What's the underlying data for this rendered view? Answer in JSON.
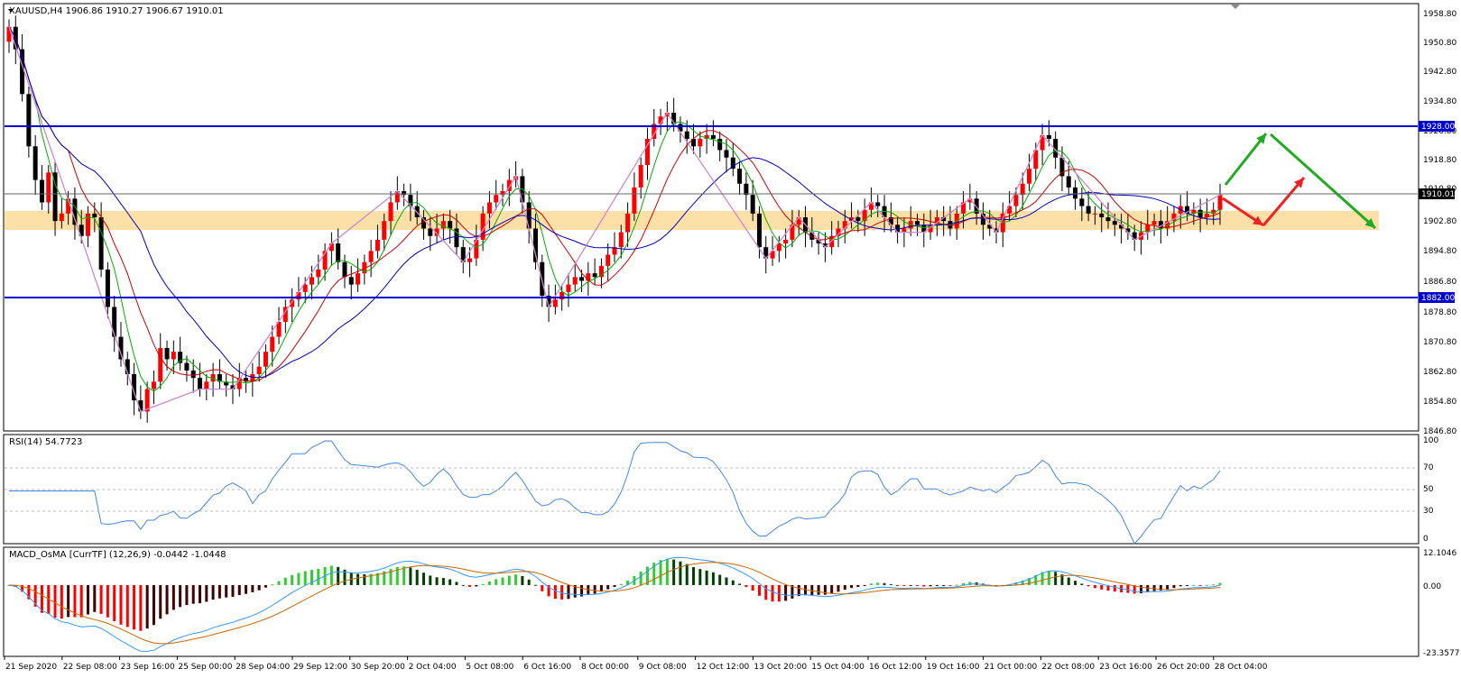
{
  "main_panel": {
    "title": "XAUUSD,H4  1906.86 1910.27 1906.67 1910.01",
    "price_levels": [
      "1958.80",
      "1950.80",
      "1942.80",
      "1934.80",
      "1926.80",
      "1918.80",
      "1910.80",
      "1902.80",
      "1894.80",
      "1886.80",
      "1878.80",
      "1870.80",
      "1862.80",
      "1854.80",
      "1846.80"
    ],
    "markers": {
      "resistance": "1928.00",
      "current": "1910.01",
      "support": "1882.00"
    }
  },
  "rsi_panel": {
    "title": "RSI(14) 54.7723",
    "levels": [
      "100",
      "70",
      "50",
      "30",
      "0"
    ]
  },
  "macd_panel": {
    "title": "MACD_OsMA [CurrTF] (12,26,9) -0.0442 -1.0448",
    "levels": [
      "12.1046",
      "0.00",
      "-23.3577"
    ]
  },
  "time_axis": [
    "21 Sep 2020",
    "22 Sep 08:00",
    "23 Sep 16:00",
    "25 Sep 00:00",
    "28 Sep 04:00",
    "29 Sep 12:00",
    "30 Sep 20:00",
    "2 Oct 04:00",
    "5 Oct 08:00",
    "6 Oct 16:00",
    "8 Oct 00:00",
    "9 Oct 08:00",
    "12 Oct 12:00",
    "13 Oct 20:00",
    "15 Oct 04:00",
    "16 Oct 12:00",
    "19 Oct 16:00",
    "21 Oct 00:00",
    "22 Oct 08:00",
    "23 Oct 16:00",
    "26 Oct 20:00",
    "28 Oct 04:00"
  ],
  "chart_data": {
    "type": "candlestick",
    "symbol": "XAUUSD",
    "timeframe": "H4",
    "ohlc_last": {
      "open": 1906.86,
      "high": 1910.27,
      "low": 1906.67,
      "close": 1910.01
    },
    "ylim": [
      1846.8,
      1958.8
    ],
    "closes": [
      1955,
      1949,
      1937,
      1923,
      1914,
      1908,
      1916,
      1903,
      1905,
      1909,
      1902,
      1899,
      1905,
      1904,
      1890,
      1880,
      1872,
      1866,
      1862,
      1855,
      1852,
      1858,
      1860,
      1869,
      1866,
      1868,
      1865,
      1863,
      1861,
      1858,
      1860,
      1862,
      1860,
      1859,
      1858,
      1861,
      1860,
      1862,
      1864,
      1868,
      1872,
      1876,
      1880,
      1882,
      1884,
      1886,
      1888,
      1890,
      1895,
      1897,
      1892,
      1888,
      1886,
      1889,
      1892,
      1895,
      1898,
      1903,
      1908,
      1911,
      1910,
      1907,
      1904,
      1901,
      1899,
      1901,
      1903,
      1901,
      1896,
      1892,
      1893,
      1898,
      1905,
      1908,
      1910,
      1911,
      1914,
      1915,
      1908,
      1901,
      1892,
      1883,
      1880,
      1882,
      1884,
      1886,
      1888,
      1887,
      1889,
      1888,
      1891,
      1894,
      1896,
      1900,
      1905,
      1912,
      1918,
      1925,
      1929,
      1931,
      1932,
      1929,
      1927,
      1925,
      1923,
      1925,
      1926,
      1925,
      1922,
      1920,
      1917,
      1913,
      1910,
      1905,
      1896,
      1893,
      1895,
      1897,
      1898,
      1902,
      1904,
      1900,
      1898,
      1897,
      1896,
      1899,
      1901,
      1903,
      1904,
      1903,
      1906,
      1908,
      1907,
      1904,
      1902,
      1900,
      1901,
      1903,
      1902,
      1900,
      1902,
      1904,
      1903,
      1901,
      1905,
      1908,
      1909,
      1905,
      1902,
      1901,
      1900,
      1905,
      1907,
      1910,
      1913,
      1917,
      1922,
      1926,
      1925,
      1920,
      1915,
      1912,
      1909,
      1907,
      1905,
      1905,
      1904,
      1903,
      1902,
      1901,
      1900,
      1898,
      1900,
      1902,
      1903,
      1901,
      1903,
      1905,
      1907,
      1905,
      1906,
      1904,
      1905,
      1906,
      1910
    ],
    "series": [
      {
        "name": "RSI(14)",
        "last": 54.7723,
        "ylim": [
          0,
          100
        ]
      },
      {
        "name": "MACD_OsMA",
        "params": "(12,26,9)",
        "values_last": [
          -0.0442,
          -1.0448
        ],
        "ylim": [
          -23.3577,
          12.1046
        ]
      }
    ],
    "levels": [
      1928.0,
      1910.01,
      1882.0
    ]
  },
  "colors": {
    "bull": "#ff0000",
    "bear": "#000000",
    "ma_fast": "#00b000",
    "ma_mid": "#cc0000",
    "ma_slow": "#0000c0",
    "zigzag": "#cc88cc",
    "hline": "#0000d0",
    "zone": "#fddfa8",
    "macd_up_dark": "#004000",
    "macd_up_light": "#33cc33",
    "macd_down_dark": "#400000",
    "macd_down_light": "#ff0000",
    "rsi_line": "#4488dd",
    "macd_line": "#3399ff",
    "signal_line": "#cc6600",
    "arrow_green": "#22aa22",
    "arrow_red": "#ee2222"
  }
}
